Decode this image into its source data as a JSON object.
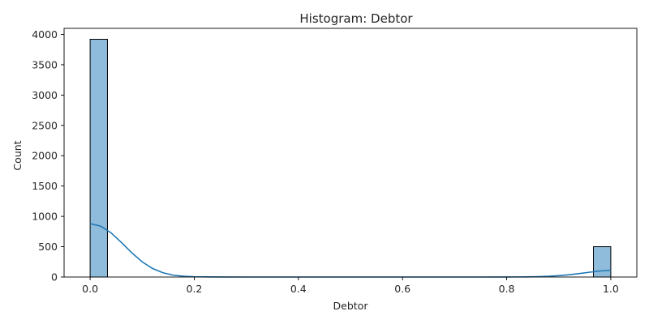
{
  "chart_data": {
    "type": "bar",
    "title": "Histogram: Debtor",
    "xlabel": "Debtor",
    "ylabel": "Count",
    "xlim": [
      -0.05,
      1.05
    ],
    "ylim": [
      0,
      4100
    ],
    "x_ticks": [
      0.0,
      0.2,
      0.4,
      0.6,
      0.8,
      1.0
    ],
    "x_tick_labels": [
      "0.0",
      "0.2",
      "0.4",
      "0.6",
      "0.8",
      "1.0"
    ],
    "y_ticks": [
      0,
      500,
      1000,
      1500,
      2000,
      2500,
      3000,
      3500,
      4000
    ],
    "y_tick_labels": [
      "0",
      "500",
      "1000",
      "1500",
      "2000",
      "2500",
      "3000",
      "3500",
      "4000"
    ],
    "grid": false,
    "bins": [
      {
        "x0": 0.0,
        "x1": 0.0333,
        "count": 3920
      },
      {
        "x0": 0.9667,
        "x1": 1.0,
        "count": 500
      }
    ],
    "kde": {
      "x": [
        0.0,
        0.02,
        0.04,
        0.06,
        0.08,
        0.1,
        0.12,
        0.14,
        0.16,
        0.18,
        0.2,
        0.25,
        0.3,
        0.4,
        0.5,
        0.6,
        0.7,
        0.75,
        0.8,
        0.84,
        0.86,
        0.88,
        0.9,
        0.92,
        0.94,
        0.96,
        0.98,
        1.0
      ],
      "y": [
        880,
        840,
        730,
        570,
        400,
        250,
        140,
        70,
        30,
        12,
        5,
        1,
        0,
        0,
        0,
        0,
        0,
        0,
        1,
        3,
        6,
        12,
        22,
        38,
        58,
        80,
        100,
        110
      ]
    },
    "colors": {
      "bar_fill": "#8fbcdb",
      "bar_edge": "#000000",
      "kde_line": "#1f77b4"
    }
  }
}
